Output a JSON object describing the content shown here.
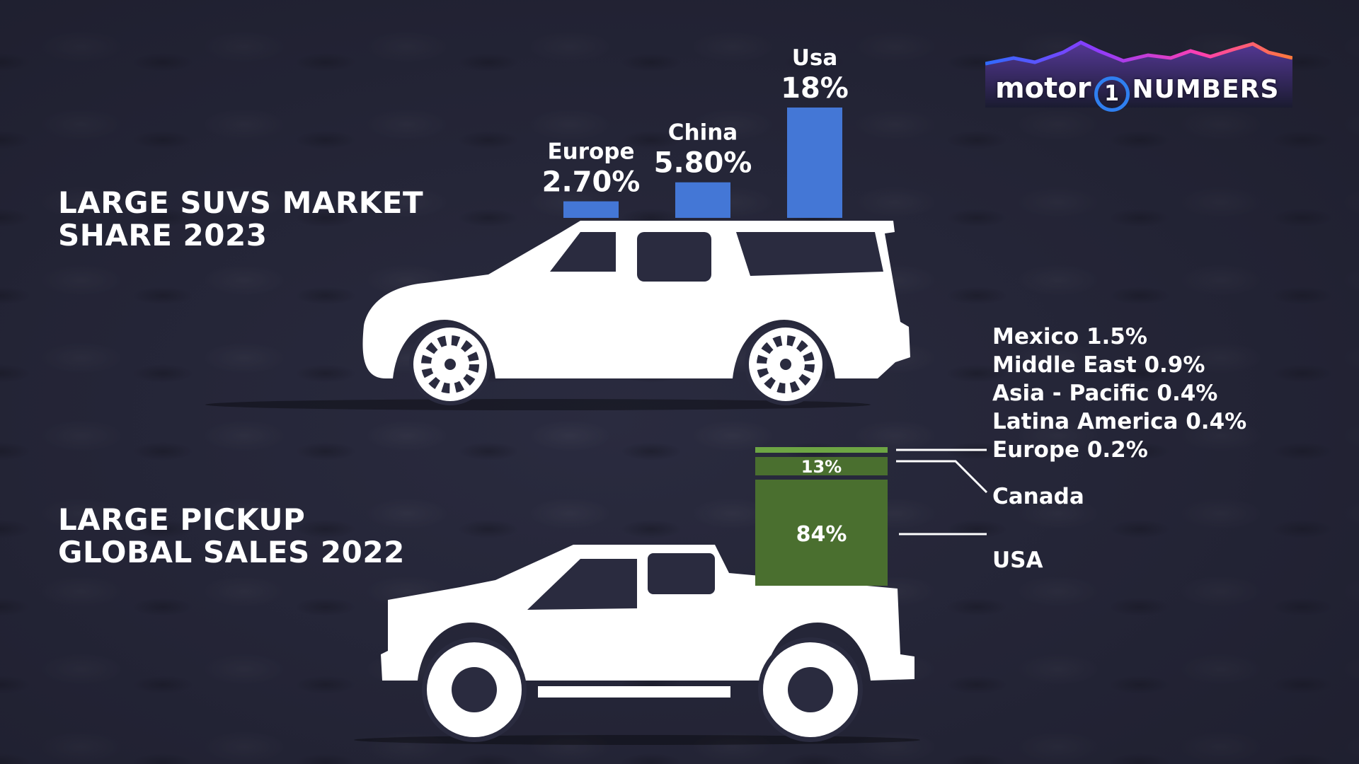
{
  "logo": {
    "word": "motor",
    "mark": "1",
    "suffix": "NUMBERS",
    "band_colors": [
      "#2f6bff",
      "#8a3cff",
      "#ff3fb0",
      "#ff7a3a"
    ]
  },
  "colors": {
    "suv_bar": "#4477d6",
    "pickup_main": "#4a6f2f",
    "pickup_small": "#6da544",
    "vehicle": "#ffffff",
    "background": "#2a2b3f"
  },
  "chart_data": [
    {
      "type": "bar",
      "title_lines": [
        "LARGE SUVS MARKET",
        "SHARE 2023"
      ],
      "categories": [
        "Europe",
        "China",
        "Usa"
      ],
      "values": [
        2.7,
        5.8,
        18
      ],
      "value_labels": [
        "2.70%",
        "5.80%",
        "18%"
      ],
      "ylim": [
        0,
        18
      ],
      "grid": false,
      "vehicle_icon": "suv-silhouette-icon"
    },
    {
      "type": "bar",
      "stacked": true,
      "title_lines": [
        "LARGE PICKUP",
        "GLOBAL SALES 2022"
      ],
      "segments": [
        {
          "name": "USA",
          "value": 84,
          "label": "84%"
        },
        {
          "name": "Canada",
          "value": 13,
          "label": "13%"
        },
        {
          "name": "Europe 0.2%",
          "value": 0.2
        },
        {
          "name": "Latina America 0.4%",
          "value": 0.4
        },
        {
          "name": "Asia - Pacific 0.4%",
          "value": 0.4
        },
        {
          "name": "Middle East 0.9%",
          "value": 0.9
        },
        {
          "name": "Mexico 1.5%",
          "value": 1.5
        }
      ],
      "region_list": [
        "Mexico 1.5%",
        "Middle East 0.9%",
        "Asia - Pacific 0.4%",
        "Latina America 0.4%",
        "Europe 0.2%"
      ],
      "callouts": [
        "Canada",
        "USA"
      ],
      "vehicle_icon": "pickup-silhouette-icon"
    }
  ]
}
